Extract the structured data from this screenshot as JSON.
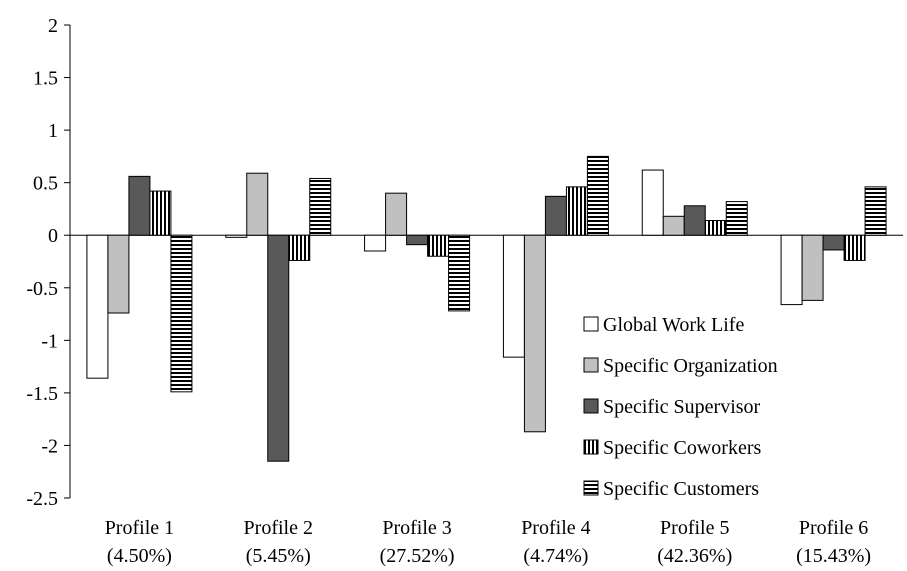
{
  "chart_data": {
    "type": "bar",
    "categories": [
      [
        "Profile 1",
        "(4.50%)"
      ],
      [
        "Profile 2",
        "(5.45%)"
      ],
      [
        "Profile 3",
        "(27.52%)"
      ],
      [
        "Profile 4",
        "(4.74%)"
      ],
      [
        "Profile 5",
        "(42.36%)"
      ],
      [
        "Profile 6",
        "(15.43%)"
      ]
    ],
    "series": [
      {
        "name": "Global Work Life",
        "values": [
          -1.36,
          -0.02,
          -0.15,
          -1.16,
          0.62,
          -0.66
        ],
        "pattern": "white"
      },
      {
        "name": "Specific Organization",
        "values": [
          -0.74,
          0.59,
          0.4,
          -1.87,
          0.18,
          -0.62
        ],
        "pattern": "light-gray"
      },
      {
        "name": "Specific Supervisor",
        "values": [
          0.56,
          -2.15,
          -0.09,
          0.37,
          0.28,
          -0.14
        ],
        "pattern": "dark-gray"
      },
      {
        "name": "Specific Coworkers",
        "values": [
          0.42,
          -0.24,
          -0.2,
          0.46,
          0.14,
          -0.24
        ],
        "pattern": "vertical-stripes"
      },
      {
        "name": "Specific Customers",
        "values": [
          -1.49,
          0.54,
          -0.72,
          0.75,
          0.32,
          0.46
        ],
        "pattern": "horizontal-stripes"
      }
    ],
    "yticks": [
      "2",
      "1.5",
      "1",
      "0.5",
      "0",
      "-0.5",
      "-1",
      "-1.5",
      "-2",
      "-2.5"
    ],
    "ylim": [
      -2.5,
      2
    ],
    "title": "",
    "xlabel": "",
    "ylabel": "",
    "grid": false,
    "legend_position": "bottom-right",
    "colors": {
      "light-gray": "#c0c0c0",
      "dark-gray": "#595959",
      "stroke": "#000000"
    }
  }
}
